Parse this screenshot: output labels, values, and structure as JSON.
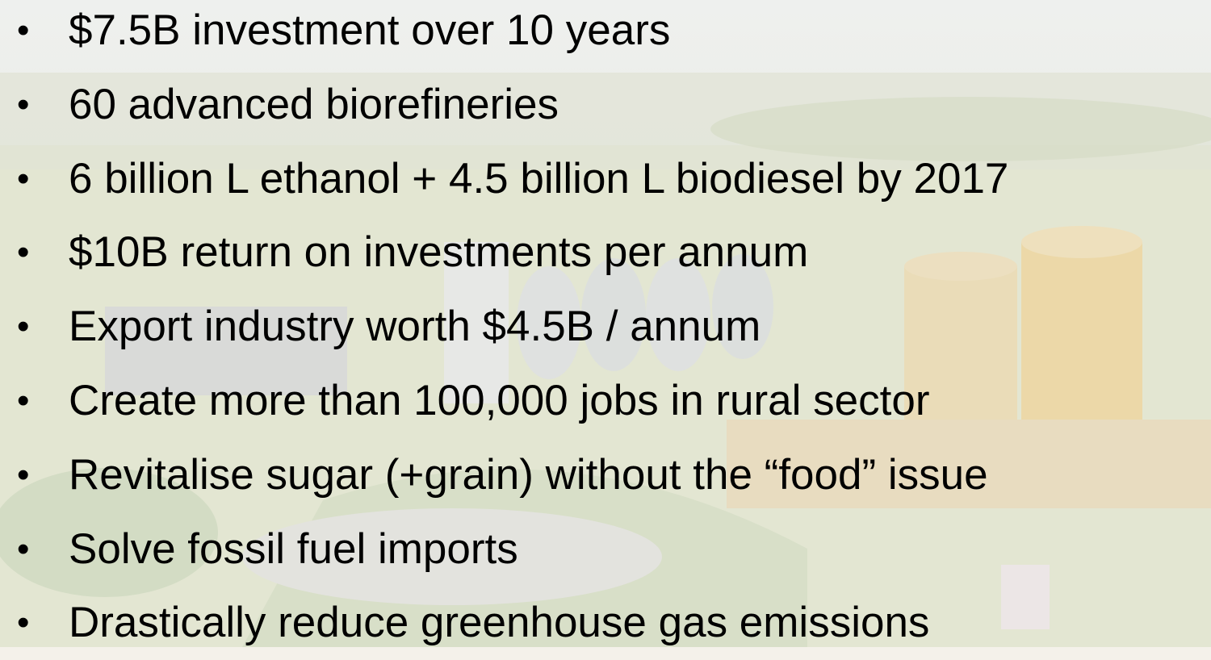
{
  "bullets": [
    "$7.5B investment over 10 years",
    "60 advanced biorefineries",
    "6 billion L ethanol + 4.5 billion L biodiesel by 2017",
    "$10B return on investments per annum",
    "Export industry worth $4.5B / annum",
    "Create more than 100,000 jobs in rural sector",
    "Revitalise sugar (+grain) without the “food” issue",
    "Solve fossil fuel imports",
    "Drastically reduce greenhouse gas emissions"
  ]
}
